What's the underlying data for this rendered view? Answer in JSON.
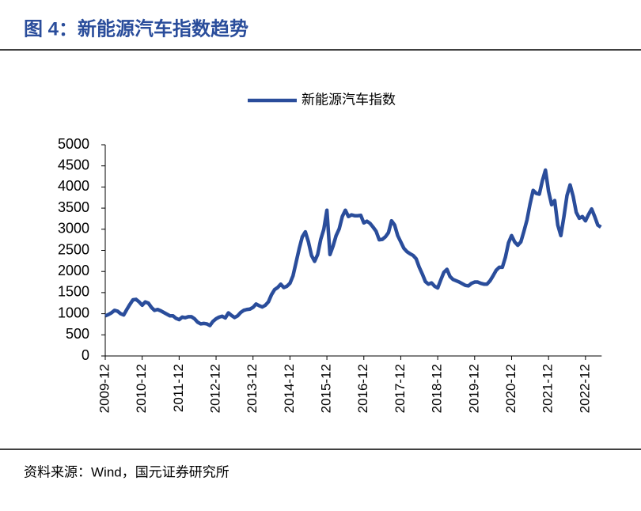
{
  "title": "图 4：新能源汽车指数趋势",
  "source": "资料来源：Wind，国元证券研究所",
  "chart_data": {
    "type": "line",
    "categories": [
      "2009-12",
      null,
      null,
      null,
      null,
      null,
      null,
      null,
      null,
      null,
      null,
      null,
      "2010-12",
      null,
      null,
      null,
      null,
      null,
      null,
      null,
      null,
      null,
      null,
      null,
      "2011-12",
      null,
      null,
      null,
      null,
      null,
      null,
      null,
      null,
      null,
      null,
      null,
      "2012-12",
      null,
      null,
      null,
      null,
      null,
      null,
      null,
      null,
      null,
      null,
      null,
      "2013-12",
      null,
      null,
      null,
      null,
      null,
      null,
      null,
      null,
      null,
      null,
      null,
      "2014-12",
      null,
      null,
      null,
      null,
      null,
      null,
      null,
      null,
      null,
      null,
      null,
      "2015-12",
      null,
      null,
      null,
      null,
      null,
      null,
      null,
      null,
      null,
      null,
      null,
      "2016-12",
      null,
      null,
      null,
      null,
      null,
      null,
      null,
      null,
      null,
      null,
      null,
      "2017-12",
      null,
      null,
      null,
      null,
      null,
      null,
      null,
      null,
      null,
      null,
      null,
      "2018-12",
      null,
      null,
      null,
      null,
      null,
      null,
      null,
      null,
      null,
      null,
      null,
      "2019-12",
      null,
      null,
      null,
      null,
      null,
      null,
      null,
      null,
      null,
      null,
      null,
      "2020-12",
      null,
      null,
      null,
      null,
      null,
      null,
      null,
      null,
      null,
      null,
      null,
      "2021-12",
      null,
      null,
      null,
      null,
      null,
      null,
      null,
      null,
      null,
      null,
      null,
      "2022-12",
      null,
      null,
      null,
      null,
      null
    ],
    "series": [
      {
        "name": "新能源汽车指数",
        "color": "#2a4d9b",
        "values": [
          950,
          980,
          1020,
          1080,
          1060,
          1000,
          970,
          1100,
          1220,
          1330,
          1340,
          1280,
          1200,
          1280,
          1250,
          1150,
          1080,
          1100,
          1070,
          1030,
          990,
          950,
          950,
          890,
          860,
          920,
          905,
          930,
          930,
          880,
          800,
          760,
          770,
          760,
          720,
          820,
          880,
          920,
          940,
          900,
          1020,
          960,
          910,
          950,
          1030,
          1080,
          1100,
          1110,
          1150,
          1230,
          1190,
          1160,
          1200,
          1280,
          1450,
          1570,
          1620,
          1700,
          1620,
          1650,
          1720,
          1900,
          2220,
          2540,
          2820,
          2940,
          2700,
          2380,
          2240,
          2400,
          2760,
          3000,
          3450,
          2400,
          2600,
          2850,
          3010,
          3300,
          3450,
          3300,
          3340,
          3320,
          3320,
          3330,
          3150,
          3190,
          3140,
          3050,
          2950,
          2750,
          2760,
          2820,
          2920,
          3200,
          3100,
          2850,
          2700,
          2550,
          2470,
          2420,
          2380,
          2300,
          2100,
          1940,
          1760,
          1700,
          1730,
          1650,
          1610,
          1800,
          1980,
          2050,
          1880,
          1810,
          1780,
          1750,
          1710,
          1670,
          1660,
          1720,
          1750,
          1750,
          1720,
          1700,
          1700,
          1780,
          1900,
          2030,
          2100,
          2100,
          2340,
          2680,
          2850,
          2700,
          2620,
          2700,
          2950,
          3220,
          3600,
          3920,
          3850,
          3830,
          4150,
          4400,
          3900,
          3580,
          3680,
          3100,
          2850,
          3300,
          3800,
          4050,
          3780,
          3400,
          3260,
          3300,
          3200,
          3350,
          3480,
          3300,
          3100,
          3050
        ]
      }
    ],
    "ylim": [
      0,
      5000
    ],
    "yticks": [
      0,
      500,
      1000,
      1500,
      2000,
      2500,
      3000,
      3500,
      4000,
      4500,
      5000
    ],
    "legend": "top"
  }
}
